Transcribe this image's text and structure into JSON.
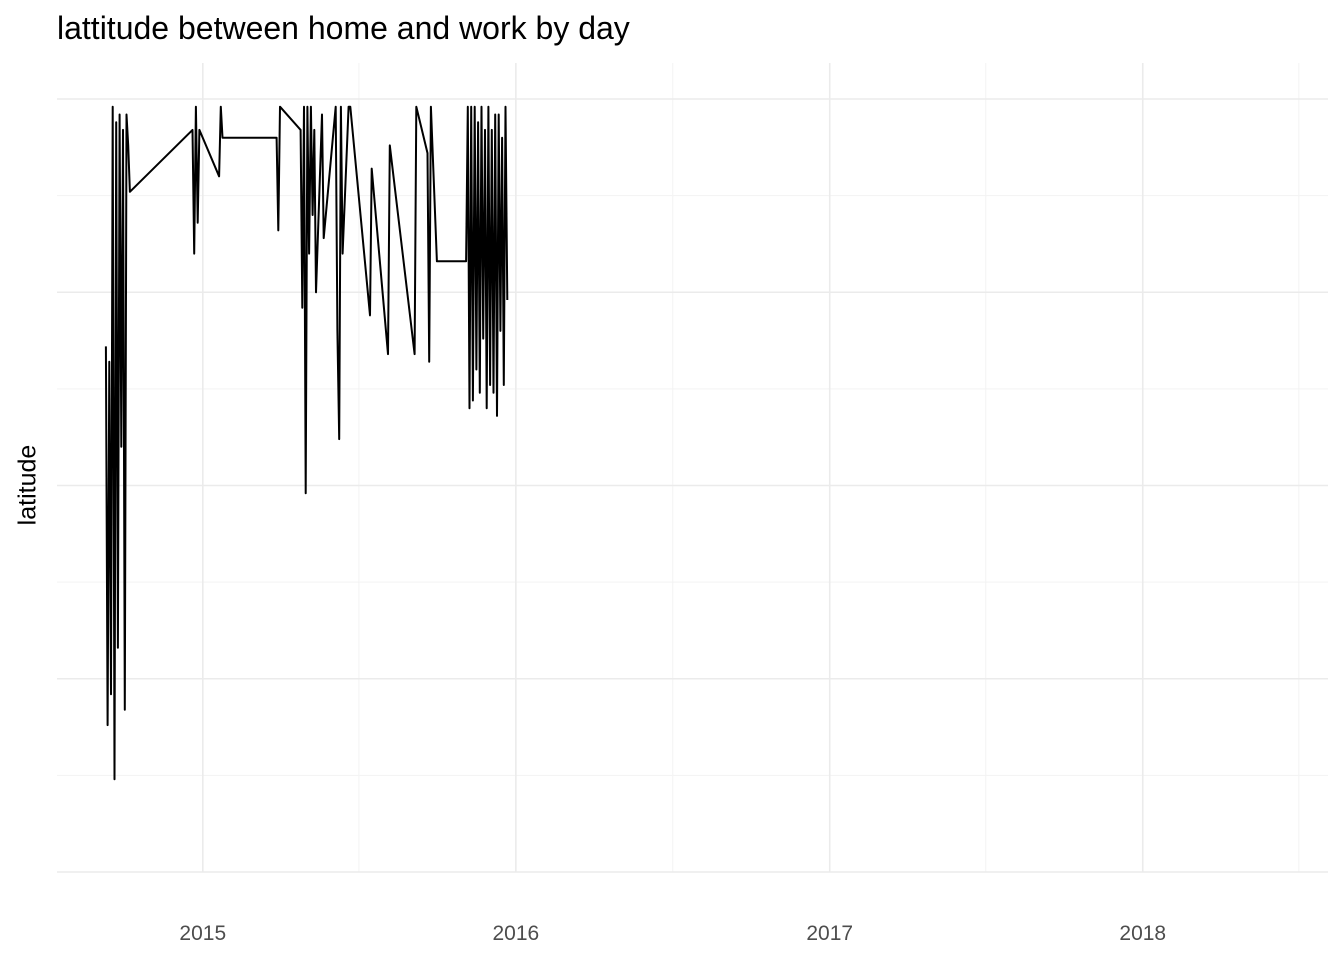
{
  "chart_data": {
    "type": "line",
    "title": "lattitude between home and work by day",
    "xlabel": "",
    "ylabel": "latitude",
    "x_ticks": [
      "2015",
      "2016",
      "2017",
      "2018"
    ],
    "xlim": [
      "2014-07-15",
      "2018-08-05"
    ],
    "ylim": [
      0,
      1
    ],
    "y_tick_labels_shown": false,
    "grid": true,
    "line_color": "#000000",
    "series": [
      {
        "points": [
          [
            "2014-09-10",
            0.68
          ],
          [
            "2014-09-12",
            0.19
          ],
          [
            "2014-09-14",
            0.66
          ],
          [
            "2014-09-16",
            0.23
          ],
          [
            "2014-09-18",
            0.99
          ],
          [
            "2014-09-20",
            0.12
          ],
          [
            "2014-09-22",
            0.97
          ],
          [
            "2014-09-24",
            0.29
          ],
          [
            "2014-09-26",
            0.98
          ],
          [
            "2014-09-28",
            0.55
          ],
          [
            "2014-09-30",
            0.96
          ],
          [
            "2014-10-02",
            0.21
          ],
          [
            "2014-10-04",
            0.98
          ],
          [
            "2014-10-06",
            0.94
          ],
          [
            "2014-10-08",
            0.88
          ],
          [
            "2014-12-20",
            0.96
          ],
          [
            "2014-12-22",
            0.8
          ],
          [
            "2014-12-24",
            0.99
          ],
          [
            "2014-12-26",
            0.84
          ],
          [
            "2014-12-28",
            0.96
          ],
          [
            "2015-01-20",
            0.9
          ],
          [
            "2015-01-22",
            0.99
          ],
          [
            "2015-01-24",
            0.95
          ],
          [
            "2015-03-28",
            0.95
          ],
          [
            "2015-03-30",
            0.83
          ],
          [
            "2015-04-01",
            0.99
          ],
          [
            "2015-04-25",
            0.96
          ],
          [
            "2015-04-27",
            0.73
          ],
          [
            "2015-04-29",
            0.99
          ],
          [
            "2015-05-01",
            0.49
          ],
          [
            "2015-05-03",
            0.99
          ],
          [
            "2015-05-05",
            0.8
          ],
          [
            "2015-05-07",
            0.99
          ],
          [
            "2015-05-09",
            0.85
          ],
          [
            "2015-05-11",
            0.96
          ],
          [
            "2015-05-13",
            0.75
          ],
          [
            "2015-05-20",
            0.98
          ],
          [
            "2015-05-22",
            0.82
          ],
          [
            "2015-06-05",
            0.99
          ],
          [
            "2015-06-07",
            0.7
          ],
          [
            "2015-06-09",
            0.56
          ],
          [
            "2015-06-11",
            0.99
          ],
          [
            "2015-06-13",
            0.8
          ],
          [
            "2015-06-20",
            0.99
          ],
          [
            "2015-06-22",
            0.99
          ],
          [
            "2015-07-15",
            0.72
          ],
          [
            "2015-07-17",
            0.91
          ],
          [
            "2015-08-05",
            0.67
          ],
          [
            "2015-08-07",
            0.94
          ],
          [
            "2015-09-05",
            0.67
          ],
          [
            "2015-09-07",
            0.99
          ],
          [
            "2015-09-20",
            0.93
          ],
          [
            "2015-09-22",
            0.66
          ],
          [
            "2015-09-24",
            0.99
          ],
          [
            "2015-10-01",
            0.79
          ],
          [
            "2015-11-04",
            0.79
          ],
          [
            "2015-11-06",
            0.99
          ],
          [
            "2015-11-08",
            0.6
          ],
          [
            "2015-11-10",
            0.99
          ],
          [
            "2015-11-12",
            0.61
          ],
          [
            "2015-11-14",
            0.99
          ],
          [
            "2015-11-16",
            0.65
          ],
          [
            "2015-11-18",
            0.97
          ],
          [
            "2015-11-20",
            0.62
          ],
          [
            "2015-11-22",
            0.99
          ],
          [
            "2015-11-24",
            0.69
          ],
          [
            "2015-11-26",
            0.96
          ],
          [
            "2015-11-28",
            0.6
          ],
          [
            "2015-11-30",
            0.99
          ],
          [
            "2015-12-02",
            0.63
          ],
          [
            "2015-12-04",
            0.96
          ],
          [
            "2015-12-06",
            0.62
          ],
          [
            "2015-12-08",
            0.98
          ],
          [
            "2015-12-10",
            0.59
          ],
          [
            "2015-12-12",
            0.98
          ],
          [
            "2015-12-14",
            0.7
          ],
          [
            "2015-12-16",
            0.95
          ],
          [
            "2015-12-18",
            0.63
          ],
          [
            "2015-12-20",
            0.99
          ],
          [
            "2015-12-22",
            0.74
          ]
        ]
      }
    ]
  }
}
